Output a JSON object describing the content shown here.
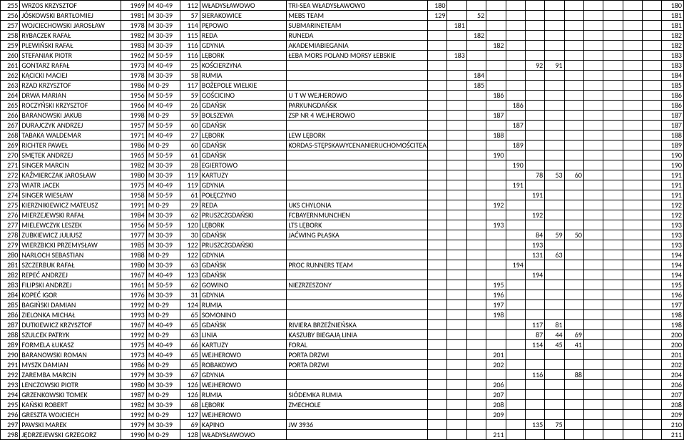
{
  "columns": [
    "num",
    "name",
    "year",
    "cat",
    "place",
    "city",
    "team",
    "v1",
    "v2",
    "v3",
    "v4",
    "v5",
    "v6",
    "v7",
    "v8",
    "v9",
    "v10",
    "v11",
    "v12",
    "last"
  ],
  "colClasses": [
    "c-num",
    "c-name",
    "c-year",
    "c-cat",
    "c-pl",
    "c-city",
    "c-team",
    "c-v",
    "c-v",
    "c-v",
    "c-v",
    "c-v",
    "c-v",
    "c-v",
    "c-v",
    "c-v",
    "c-v",
    "c-v",
    "c-v",
    "c-last"
  ],
  "rows": [
    [
      "255",
      "WRZOS KRZYSZTOF",
      "1969",
      "M 40-49",
      "112",
      "WŁADYSŁAWOWO",
      "TRI-SEA WŁADYSŁAWOWO",
      "180",
      "",
      "",
      "",
      "",
      "",
      "",
      "",
      "",
      "",
      "",
      "",
      "180"
    ],
    [
      "256",
      "JÓSKOWSKI BARTŁOMIEJ",
      "1981",
      "M 30-39",
      "57",
      "SIERAKOWICE",
      "MEBS TEAM",
      "129",
      "",
      "52",
      "",
      "",
      "",
      "",
      "",
      "",
      "",
      "",
      "",
      "181"
    ],
    [
      "257",
      "WOJCIECHOWSKI JAROSŁAW",
      "1978",
      "M 30-39",
      "114",
      "PĘPOWO",
      "SUBMARINETEAM",
      "",
      "181",
      "",
      "",
      "",
      "",
      "",
      "",
      "",
      "",
      "",
      "",
      "181"
    ],
    [
      "258",
      "RYBACZEK RAFAŁ",
      "1982",
      "M 30-39",
      "115",
      "REDA",
      "RUNEDA",
      "",
      "",
      "182",
      "",
      "",
      "",
      "",
      "",
      "",
      "",
      "",
      "",
      "182"
    ],
    [
      "259",
      "PLEWIŃSKI RAFAŁ",
      "1983",
      "M 30-39",
      "116",
      "GDYNIA",
      "AKADEMIABIEGANIA",
      "",
      "",
      "",
      "182",
      "",
      "",
      "",
      "",
      "",
      "",
      "",
      "",
      "182"
    ],
    [
      "260",
      "STEFANIAK PIOTR",
      "1962",
      "M 50-59",
      "116",
      "LĘBORK",
      "ŁEBA MORS POLAND MORSY ŁEBSKIE",
      "",
      "183",
      "",
      "",
      "",
      "",
      "",
      "",
      "",
      "",
      "",
      "",
      "183"
    ],
    [
      "261",
      "GONTARZ RAFAŁ",
      "1973",
      "M 40-49",
      "25",
      "KOŚCIERZYNA",
      "",
      "",
      "",
      "",
      "",
      "",
      "92",
      "91",
      "",
      "",
      "",
      "",
      "",
      "183"
    ],
    [
      "262",
      "KĄCICKI MACIEJ",
      "1978",
      "M 30-39",
      "58",
      "RUMIA",
      "",
      "",
      "",
      "184",
      "",
      "",
      "",
      "",
      "",
      "",
      "",
      "",
      "",
      "184"
    ],
    [
      "263",
      "RZAD KRZYSZTOF",
      "1986",
      "M 0-29",
      "117",
      "BOŻEPOLE WIELKIE",
      "",
      "",
      "",
      "185",
      "",
      "",
      "",
      "",
      "",
      "",
      "",
      "",
      "",
      "185"
    ],
    [
      "264",
      "DRWA MARIAN",
      "1956",
      "M 50-59",
      "59",
      "GOŚCICINO",
      "U T W WEJHEROWO",
      "",
      "",
      "",
      "186",
      "",
      "",
      "",
      "",
      "",
      "",
      "",
      "",
      "186"
    ],
    [
      "265",
      "ROCZYŃSKI KRZYSZTOF",
      "1966",
      "M 40-49",
      "26",
      "GDAŃSK",
      "PARKUNGDAŃSK",
      "",
      "",
      "",
      "",
      "186",
      "",
      "",
      "",
      "",
      "",
      "",
      "",
      "186"
    ],
    [
      "266",
      "BARANOWSKI JAKUB",
      "1998",
      "M 0-29",
      "59",
      "BOLSZEWA",
      "ZSP NR 4 WEJHEROWO",
      "",
      "",
      "",
      "187",
      "",
      "",
      "",
      "",
      "",
      "",
      "",
      "",
      "187"
    ],
    [
      "267",
      "DURAJCZYK ANDRZEJ",
      "1957",
      "M 50-59",
      "60",
      "GDAŃSK",
      "",
      "",
      "",
      "",
      "",
      "187",
      "",
      "",
      "",
      "",
      "",
      "",
      "",
      "187"
    ],
    [
      "268",
      "TABAKA WALDEMAR",
      "1971",
      "M 40-49",
      "27",
      "LĘBORK",
      "LEW LĘBORK",
      "",
      "",
      "",
      "188",
      "",
      "",
      "",
      "",
      "",
      "",
      "",
      "",
      "188"
    ],
    [
      "269",
      "RICHTER PAWEŁ",
      "1986",
      "M 0-29",
      "60",
      "GDAŃSK",
      "KORDAS-STĘPSKAWYCENANIERUCHOMOŚCITEAM",
      "",
      "",
      "",
      "",
      "189",
      "",
      "",
      "",
      "",
      "",
      "",
      "",
      "189"
    ],
    [
      "270",
      "SMĘTEK ANDRZEJ",
      "1965",
      "M 50-59",
      "61",
      "GDAŃSK",
      "",
      "",
      "",
      "",
      "190",
      "",
      "",
      "",
      "",
      "",
      "",
      "",
      "",
      "190"
    ],
    [
      "271",
      "SINGER MARCIN",
      "1982",
      "M 30-39",
      "28",
      "EGIERTOWO",
      "",
      "",
      "",
      "",
      "",
      "190",
      "",
      "",
      "",
      "",
      "",
      "",
      "",
      "190"
    ],
    [
      "272",
      "KAŹMIERCZAK JAROSŁAW",
      "1980",
      "M 30-39",
      "119",
      "KARTUZY",
      "",
      "",
      "",
      "",
      "",
      "",
      "78",
      "53",
      "60",
      "",
      "",
      "",
      "",
      "191"
    ],
    [
      "273",
      "WIATR JACEK",
      "1975",
      "M 40-49",
      "119",
      "GDYNIA",
      "",
      "",
      "",
      "",
      "",
      "191",
      "",
      "",
      "",
      "",
      "",
      "",
      "",
      "191"
    ],
    [
      "274",
      "SINGER WIESŁAW",
      "1958",
      "M 50-59",
      "61",
      "POŁĘCZYNO",
      "",
      "",
      "",
      "",
      "",
      "",
      "191",
      "",
      "",
      "",
      "",
      "",
      "",
      "191"
    ],
    [
      "275",
      "KIERZNIKIEWICZ MATEUSZ",
      "1991",
      "M 0-29",
      "29",
      "REDA",
      "UKS CHYLONIA",
      "",
      "",
      "",
      "192",
      "",
      "",
      "",
      "",
      "",
      "",
      "",
      "",
      "192"
    ],
    [
      "276",
      "MIERZEJEWSKI RAFAŁ",
      "1984",
      "M 30-39",
      "62",
      "PRUSZCZGDAŃSKI",
      "FCBAYERNMUNCHEN",
      "",
      "",
      "",
      "",
      "",
      "192",
      "",
      "",
      "",
      "",
      "",
      "",
      "192"
    ],
    [
      "277",
      "MIELEWCZYK LESZEK",
      "1956",
      "M 50-59",
      "120",
      "LĘBORK",
      "LTS LĘBORK",
      "",
      "",
      "",
      "193",
      "",
      "",
      "",
      "",
      "",
      "",
      "",
      "",
      "193"
    ],
    [
      "278",
      "ZUBKIEWICZ JULIUSZ",
      "1977",
      "M 30-39",
      "30",
      "GDAŃSK",
      "JAĆWING PŁASKA",
      "",
      "",
      "",
      "",
      "",
      "84",
      "59",
      "50",
      "",
      "",
      "",
      "",
      "193"
    ],
    [
      "279",
      "WIERZBICKI PRZEMYSŁAW",
      "1985",
      "M 30-39",
      "122",
      "PRUSZCZGDAŃSKI",
      "",
      "",
      "",
      "",
      "",
      "",
      "193",
      "",
      "",
      "",
      "",
      "",
      "",
      "193"
    ],
    [
      "280",
      "NARLOCH SEBASTIAN",
      "1988",
      "M 0-29",
      "122",
      "GDYNIA",
      "",
      "",
      "",
      "",
      "",
      "",
      "131",
      "63",
      "",
      "",
      "",
      "",
      "",
      "194"
    ],
    [
      "281",
      "SZCZERBUK RAFAŁ",
      "1980",
      "M 30-39",
      "63",
      "GDAŃSK",
      "PROC RUNNERS TEAM",
      "",
      "",
      "",
      "",
      "194",
      "",
      "",
      "",
      "",
      "",
      "",
      "",
      "194"
    ],
    [
      "282",
      "REPEĆ ANDRZEJ",
      "1967",
      "M 40-49",
      "123",
      "GDAŃSK",
      "",
      "",
      "",
      "",
      "",
      "",
      "194",
      "",
      "",
      "",
      "",
      "",
      "",
      "194"
    ],
    [
      "283",
      "FILIPSKI ANDRZEJ",
      "1961",
      "M 50-59",
      "62",
      "GOWINO",
      "NIEZRZESZONY",
      "",
      "",
      "",
      "195",
      "",
      "",
      "",
      "",
      "",
      "",
      "",
      "",
      "195"
    ],
    [
      "284",
      "KOPEĆ IGOR",
      "1976",
      "M 30-39",
      "31",
      "GDYNIA",
      "",
      "",
      "",
      "",
      "196",
      "",
      "",
      "",
      "",
      "",
      "",
      "",
      "",
      "196"
    ],
    [
      "285",
      "BAGIŃSKI DAMIAN",
      "1992",
      "M 0-29",
      "124",
      "RUMIA",
      "",
      "",
      "",
      "",
      "197",
      "",
      "",
      "",
      "",
      "",
      "",
      "",
      "",
      "197"
    ],
    [
      "286",
      "ZIELONKA MICHAŁ",
      "1993",
      "M 0-29",
      "65",
      "SOMONINO",
      "",
      "",
      "",
      "",
      "198",
      "",
      "",
      "",
      "",
      "",
      "",
      "",
      "",
      "198"
    ],
    [
      "287",
      "DUTKIEWICZ KRZYSZTOF",
      "1967",
      "M 40-49",
      "65",
      "GDAŃSK",
      "RIVIERA BRZEŹNIEŃSKA",
      "",
      "",
      "",
      "",
      "",
      "117",
      "81",
      "",
      "",
      "",
      "",
      "",
      "198"
    ],
    [
      "288",
      "SZULCEK PATRYK",
      "1992",
      "M 0-29",
      "63",
      "LINIA",
      "KASZUBY BIEGAJĄ LINIA",
      "",
      "",
      "",
      "",
      "",
      "87",
      "44",
      "69",
      "",
      "",
      "",
      "",
      "200"
    ],
    [
      "289",
      "FORMELA ŁUKASZ",
      "1975",
      "M 40-49",
      "66",
      "KARTUZY",
      "FORAL",
      "",
      "",
      "",
      "",
      "",
      "114",
      "45",
      "41",
      "",
      "",
      "",
      "",
      "200"
    ],
    [
      "290",
      "BARANOWSKI ROMAN",
      "1973",
      "M 40-49",
      "65",
      "WEJHEROWO",
      "PORTA DRZWI",
      "",
      "",
      "",
      "201",
      "",
      "",
      "",
      "",
      "",
      "",
      "",
      "",
      "201"
    ],
    [
      "291",
      "MYSZK DAMIAN",
      "1986",
      "M 0-29",
      "65",
      "ROBAKOWO",
      "PORTA DRZWI",
      "",
      "",
      "",
      "202",
      "",
      "",
      "",
      "",
      "",
      "",
      "",
      "",
      "202"
    ],
    [
      "292",
      "ZAREMBA MARCIN",
      "1979",
      "M 30-39",
      "67",
      "GDYNIA",
      "",
      "",
      "",
      "",
      "",
      "",
      "116",
      "",
      "88",
      "",
      "",
      "",
      "",
      "204"
    ],
    [
      "293",
      "LENCZOWSKI PIOTR",
      "1980",
      "M 30-39",
      "126",
      "WEJHEROWO",
      "",
      "",
      "",
      "",
      "206",
      "",
      "",
      "",
      "",
      "",
      "",
      "",
      "",
      "206"
    ],
    [
      "294",
      "GRZENKOWSKI TOMEK",
      "1987",
      "M 0-29",
      "126",
      "RUMIA",
      "SIÓDEMKA RUMIA",
      "",
      "",
      "",
      "207",
      "",
      "",
      "",
      "",
      "",
      "",
      "",
      "",
      "207"
    ],
    [
      "295",
      "KAŃSKI ROBERT",
      "1982",
      "M 30-39",
      "68",
      "LĘBORK",
      "ZMECHOLE",
      "",
      "",
      "",
      "208",
      "",
      "",
      "",
      "",
      "",
      "",
      "",
      "",
      "208"
    ],
    [
      "296",
      "GRESZTA WOJCIECH",
      "1992",
      "M 0-29",
      "127",
      "WEJHEROWO",
      "",
      "",
      "",
      "",
      "209",
      "",
      "",
      "",
      "",
      "",
      "",
      "",
      "",
      "209"
    ],
    [
      "297",
      "PAWSKI MAREK",
      "1979",
      "M 30-39",
      "69",
      "KĄPINO",
      "JW 3936",
      "",
      "",
      "",
      "",
      "",
      "135",
      "75",
      "",
      "",
      "",
      "",
      "",
      "210"
    ],
    [
      "298",
      "JĘDRZEJEWSKI GRZEGORZ",
      "1990",
      "M 0-29",
      "128",
      "WŁADYSŁAWOWO",
      "",
      "",
      "",
      "",
      "211",
      "",
      "",
      "",
      "",
      "",
      "",
      "",
      "",
      "211"
    ]
  ]
}
